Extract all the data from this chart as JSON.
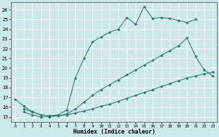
{
  "xlabel": "Humidex (Indice chaleur)",
  "x_ticks": [
    0,
    1,
    2,
    3,
    4,
    5,
    6,
    7,
    8,
    9,
    10,
    11,
    12,
    13,
    14,
    15,
    16,
    17,
    18,
    19,
    20,
    21,
    22,
    23
  ],
  "ylim": [
    14.5,
    26.8
  ],
  "xlim": [
    -0.5,
    23.5
  ],
  "y_ticks": [
    15,
    16,
    17,
    18,
    19,
    20,
    21,
    22,
    23,
    24,
    25,
    26
  ],
  "line_color": "#2e7d6e",
  "bg_color": "#cce8e8",
  "grid_color": "#b0d4d4",
  "series": [
    {
      "x": [
        0,
        1,
        2,
        3,
        4,
        5,
        6,
        7,
        8,
        9,
        10,
        11,
        12,
        13,
        14,
        15,
        16,
        17,
        18,
        19,
        20,
        21
      ],
      "y": [
        16.8,
        16.1,
        15.5,
        15.2,
        15.1,
        15.2,
        15.7,
        19.0,
        21.0,
        22.7,
        23.2,
        23.7,
        24.0,
        25.2,
        24.5,
        26.3,
        25.1,
        25.2,
        25.1,
        24.9,
        24.7,
        25.0
      ]
    },
    {
      "x": [
        1,
        2,
        3,
        4,
        5,
        6,
        7,
        8,
        9,
        10,
        11,
        12,
        13,
        14,
        15,
        16,
        17,
        18,
        19,
        20,
        21,
        22,
        23
      ],
      "y": [
        15.8,
        15.5,
        15.2,
        15.1,
        15.1,
        15.3,
        15.8,
        16.5,
        17.2,
        17.8,
        18.3,
        18.8,
        19.3,
        19.8,
        20.3,
        20.8,
        21.3,
        21.8,
        22.3,
        23.1,
        21.2,
        19.8,
        19.2
      ]
    },
    {
      "x": [
        1,
        2,
        3,
        4,
        5,
        6,
        7,
        8,
        9,
        10,
        11,
        12,
        13,
        14,
        15,
        16,
        17,
        18,
        19,
        20,
        21,
        22,
        23
      ],
      "y": [
        15.5,
        15.2,
        15.0,
        15.0,
        15.1,
        15.2,
        15.4,
        15.6,
        15.8,
        16.1,
        16.3,
        16.6,
        16.9,
        17.2,
        17.5,
        17.8,
        18.1,
        18.4,
        18.7,
        19.0,
        19.2,
        19.4,
        19.6
      ]
    }
  ]
}
